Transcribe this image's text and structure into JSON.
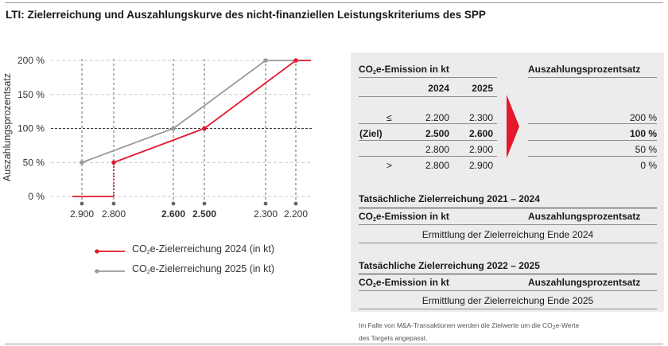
{
  "title": "LTI: Zielerreichung und Auszahlungskurve des nicht-finanziellen Leistungskriteriums des SPP",
  "chart_data": {
    "type": "line",
    "ylabel": "Auszahlungsprozentsatz",
    "y_ticks": [
      "200 %",
      "150 %",
      "100 %",
      "50 %",
      "0 %"
    ],
    "y_tick_values": [
      200,
      150,
      100,
      50,
      0
    ],
    "ylim": [
      0,
      200
    ],
    "x_ticks": [
      "2.900",
      "2.800",
      "2.600",
      "2.500",
      "2.300",
      "2.200"
    ],
    "x_tick_values": [
      2900,
      2800,
      2600,
      2500,
      2300,
      2200
    ],
    "x_tick_bold": [
      false,
      false,
      true,
      true,
      false,
      false
    ],
    "x_reversed": true,
    "series": [
      {
        "name": "CO₂e-Zielerreichung 2024 (in kt)",
        "color": "#e3182d",
        "points": [
          [
            2930,
            0
          ],
          [
            2800,
            0
          ],
          [
            2800,
            50
          ],
          [
            2500,
            100
          ],
          [
            2200,
            200
          ],
          [
            2150,
            200
          ]
        ]
      },
      {
        "name": "CO₂e-Zielerreichung 2025 (in kt)",
        "color": "#9a9a9a",
        "points": [
          [
            2900,
            50
          ],
          [
            2600,
            100
          ],
          [
            2300,
            200
          ],
          [
            2200,
            200
          ]
        ]
      }
    ],
    "legend": {
      "item1_prefix": "CO",
      "item1_sub": "2",
      "item1_suffix": "e-Zielerreichung 2024 (in kt)",
      "item2_prefix": "CO",
      "item2_sub": "2",
      "item2_suffix": "e-Zielerreichung 2025 (in kt)"
    }
  },
  "table": {
    "header_left_prefix": "CO",
    "header_left_sub": "2",
    "header_left_suffix": "e-Emission in kt",
    "header_right": "Auszahlungsprozentsatz",
    "col_2024": "2024",
    "col_2025": "2025",
    "rows": [
      {
        "label": "≤",
        "v2024": "2.200",
        "v2025": "2.300",
        "payout": "200 %",
        "bold": false
      },
      {
        "label": "(Ziel)",
        "v2024": "2.500",
        "v2025": "2.600",
        "payout": "100 %",
        "bold": true
      },
      {
        "label": "",
        "v2024": "2.800",
        "v2025": "2.900",
        "payout": "50 %",
        "bold": false
      },
      {
        "label": ">",
        "v2024": "2.800",
        "v2025": "2.900",
        "payout": "0 %",
        "bold": false
      }
    ]
  },
  "actual_2024": {
    "title": "Tatsächliche Zielerreichung 2021 – 2024",
    "col_left_prefix": "CO",
    "col_left_sub": "2",
    "col_left_suffix": "e-Emission in kt",
    "col_right": "Auszahlungsprozentsatz",
    "value": "Ermittlung der Zielerreichung Ende 2024"
  },
  "actual_2025": {
    "title": "Tatsächliche Zielerreichung 2022 – 2025",
    "col_left_prefix": "CO",
    "col_left_sub": "2",
    "col_left_suffix": "e-Emission in kt",
    "col_right": "Auszahlungsprozentsatz",
    "value": "Ermittlung der Zielerreichung Ende 2025"
  },
  "footnote": {
    "line1_prefix": "Im Falle von M&A-Transaktionen werden die Zielwerte um die CO",
    "line1_sub": "2",
    "line1_suffix": "e-Werte",
    "line2": "des Targets angepasst."
  },
  "colors": {
    "accent": "#e3182d",
    "gray_series": "#9a9a9a",
    "panel": "#ececec"
  }
}
